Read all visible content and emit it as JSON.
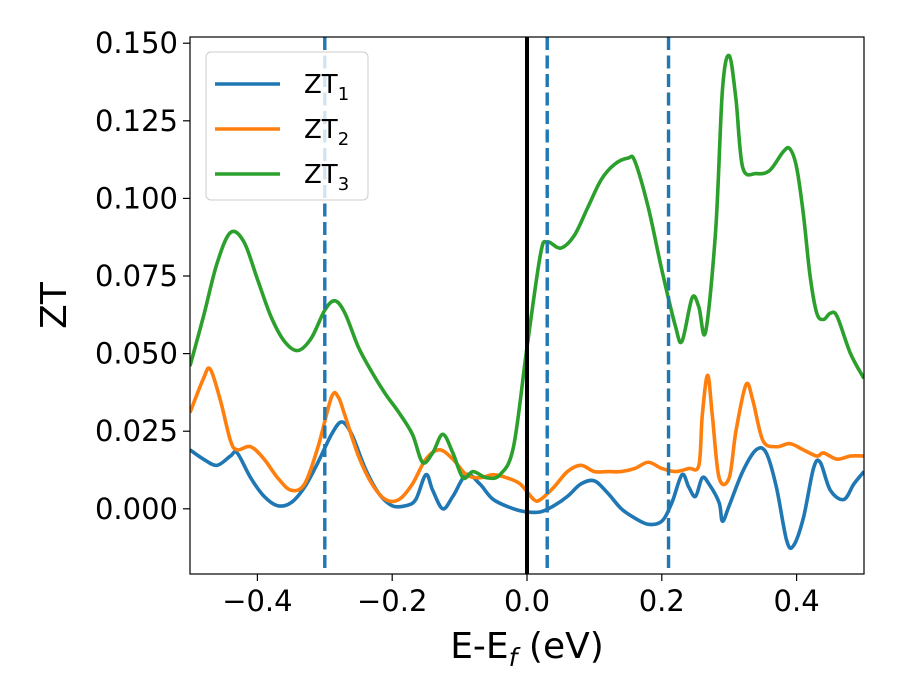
{
  "chart_data": {
    "type": "line",
    "xlabel": {
      "main": "E-E",
      "sub": "f",
      "suffix": " (eV)"
    },
    "ylabel": "ZT",
    "xlim": [
      -0.5,
      0.5
    ],
    "ylim": [
      -0.021,
      0.152
    ],
    "xticks": [
      {
        "value": -0.4,
        "label": "−0.4"
      },
      {
        "value": -0.2,
        "label": "−0.2"
      },
      {
        "value": 0.0,
        "label": "0.0"
      },
      {
        "value": 0.2,
        "label": "0.2"
      },
      {
        "value": 0.4,
        "label": "0.4"
      }
    ],
    "yticks": [
      {
        "value": 0.0,
        "label": "0.000"
      },
      {
        "value": 0.025,
        "label": "0.025"
      },
      {
        "value": 0.05,
        "label": "0.050"
      },
      {
        "value": 0.075,
        "label": "0.075"
      },
      {
        "value": 0.1,
        "label": "0.100"
      },
      {
        "value": 0.125,
        "label": "0.125"
      },
      {
        "value": 0.15,
        "label": "0.150"
      }
    ],
    "grid": false,
    "legend_position": "top-left",
    "vertical_lines": [
      {
        "x": 0.0,
        "style": "solid",
        "color": "#000000"
      },
      {
        "x": -0.3,
        "style": "dashed",
        "color": "#1f77b4"
      },
      {
        "x": 0.03,
        "style": "dashed",
        "color": "#1f77b4"
      },
      {
        "x": 0.21,
        "style": "dashed",
        "color": "#1f77b4"
      }
    ],
    "series": [
      {
        "name": {
          "main": "ZT",
          "sub": "1"
        },
        "color": "#1f77b4",
        "points": [
          [
            -0.5,
            0.019
          ],
          [
            -0.48,
            0.016
          ],
          [
            -0.46,
            0.014
          ],
          [
            -0.44,
            0.017
          ],
          [
            -0.43,
            0.018
          ],
          [
            -0.41,
            0.01
          ],
          [
            -0.39,
            0.004
          ],
          [
            -0.37,
            0.001
          ],
          [
            -0.35,
            0.002
          ],
          [
            -0.33,
            0.007
          ],
          [
            -0.31,
            0.015
          ],
          [
            -0.29,
            0.024
          ],
          [
            -0.275,
            0.028
          ],
          [
            -0.26,
            0.024
          ],
          [
            -0.24,
            0.013
          ],
          [
            -0.22,
            0.005
          ],
          [
            -0.2,
            0.001
          ],
          [
            -0.18,
            0.001
          ],
          [
            -0.165,
            0.003
          ],
          [
            -0.15,
            0.011
          ],
          [
            -0.14,
            0.006
          ],
          [
            -0.125,
            0.0
          ],
          [
            -0.11,
            0.004
          ],
          [
            -0.09,
            0.011
          ],
          [
            -0.07,
            0.008
          ],
          [
            -0.05,
            0.003
          ],
          [
            -0.02,
            0.0
          ],
          [
            0.0,
            -0.001
          ],
          [
            0.02,
            -0.001
          ],
          [
            0.04,
            0.001
          ],
          [
            0.06,
            0.004
          ],
          [
            0.08,
            0.008
          ],
          [
            0.1,
            0.009
          ],
          [
            0.12,
            0.005
          ],
          [
            0.14,
            0.0
          ],
          [
            0.16,
            -0.003
          ],
          [
            0.18,
            -0.005
          ],
          [
            0.2,
            -0.004
          ],
          [
            0.215,
            0.002
          ],
          [
            0.23,
            0.011
          ],
          [
            0.24,
            0.007
          ],
          [
            0.25,
            0.004
          ],
          [
            0.26,
            0.01
          ],
          [
            0.27,
            0.008
          ],
          [
            0.285,
            0.002
          ],
          [
            0.29,
            -0.004
          ],
          [
            0.3,
            0.001
          ],
          [
            0.32,
            0.012
          ],
          [
            0.34,
            0.019
          ],
          [
            0.355,
            0.018
          ],
          [
            0.37,
            0.007
          ],
          [
            0.385,
            -0.01
          ],
          [
            0.395,
            -0.012
          ],
          [
            0.41,
            -0.003
          ],
          [
            0.425,
            0.013
          ],
          [
            0.435,
            0.015
          ],
          [
            0.45,
            0.006
          ],
          [
            0.47,
            0.003
          ],
          [
            0.485,
            0.008
          ],
          [
            0.5,
            0.012
          ]
        ]
      },
      {
        "name": {
          "main": "ZT",
          "sub": "2"
        },
        "color": "#ff7f0e",
        "points": [
          [
            -0.5,
            0.031
          ],
          [
            -0.48,
            0.042
          ],
          [
            -0.47,
            0.045
          ],
          [
            -0.455,
            0.035
          ],
          [
            -0.44,
            0.022
          ],
          [
            -0.43,
            0.019
          ],
          [
            -0.41,
            0.02
          ],
          [
            -0.39,
            0.016
          ],
          [
            -0.37,
            0.01
          ],
          [
            -0.35,
            0.006
          ],
          [
            -0.33,
            0.008
          ],
          [
            -0.31,
            0.02
          ],
          [
            -0.29,
            0.036
          ],
          [
            -0.28,
            0.036
          ],
          [
            -0.27,
            0.03
          ],
          [
            -0.25,
            0.017
          ],
          [
            -0.23,
            0.008
          ],
          [
            -0.21,
            0.003
          ],
          [
            -0.19,
            0.003
          ],
          [
            -0.17,
            0.008
          ],
          [
            -0.15,
            0.016
          ],
          [
            -0.13,
            0.019
          ],
          [
            -0.11,
            0.016
          ],
          [
            -0.09,
            0.011
          ],
          [
            -0.07,
            0.01
          ],
          [
            -0.05,
            0.011
          ],
          [
            -0.03,
            0.01
          ],
          [
            -0.01,
            0.008
          ],
          [
            0.01,
            0.003
          ],
          [
            0.02,
            0.003
          ],
          [
            0.04,
            0.007
          ],
          [
            0.06,
            0.012
          ],
          [
            0.08,
            0.014
          ],
          [
            0.1,
            0.012
          ],
          [
            0.12,
            0.012
          ],
          [
            0.14,
            0.012
          ],
          [
            0.16,
            0.013
          ],
          [
            0.18,
            0.015
          ],
          [
            0.2,
            0.013
          ],
          [
            0.22,
            0.012
          ],
          [
            0.24,
            0.013
          ],
          [
            0.255,
            0.014
          ],
          [
            0.26,
            0.03
          ],
          [
            0.268,
            0.043
          ],
          [
            0.275,
            0.03
          ],
          [
            0.285,
            0.01
          ],
          [
            0.3,
            0.01
          ],
          [
            0.31,
            0.025
          ],
          [
            0.325,
            0.04
          ],
          [
            0.335,
            0.035
          ],
          [
            0.35,
            0.022
          ],
          [
            0.37,
            0.02
          ],
          [
            0.39,
            0.021
          ],
          [
            0.41,
            0.019
          ],
          [
            0.43,
            0.017
          ],
          [
            0.44,
            0.018
          ],
          [
            0.46,
            0.016
          ],
          [
            0.48,
            0.017
          ],
          [
            0.5,
            0.017
          ]
        ]
      },
      {
        "name": {
          "main": "ZT",
          "sub": "3"
        },
        "color": "#2ca02c",
        "points": [
          [
            -0.5,
            0.046
          ],
          [
            -0.48,
            0.062
          ],
          [
            -0.46,
            0.079
          ],
          [
            -0.44,
            0.089
          ],
          [
            -0.42,
            0.086
          ],
          [
            -0.4,
            0.074
          ],
          [
            -0.38,
            0.062
          ],
          [
            -0.36,
            0.054
          ],
          [
            -0.34,
            0.051
          ],
          [
            -0.32,
            0.055
          ],
          [
            -0.3,
            0.064
          ],
          [
            -0.285,
            0.067
          ],
          [
            -0.27,
            0.063
          ],
          [
            -0.25,
            0.052
          ],
          [
            -0.23,
            0.044
          ],
          [
            -0.21,
            0.037
          ],
          [
            -0.19,
            0.031
          ],
          [
            -0.17,
            0.024
          ],
          [
            -0.155,
            0.015
          ],
          [
            -0.14,
            0.018
          ],
          [
            -0.125,
            0.024
          ],
          [
            -0.11,
            0.018
          ],
          [
            -0.095,
            0.01
          ],
          [
            -0.08,
            0.012
          ],
          [
            -0.06,
            0.01
          ],
          [
            -0.04,
            0.011
          ],
          [
            -0.02,
            0.02
          ],
          [
            0.0,
            0.052
          ],
          [
            0.02,
            0.082
          ],
          [
            0.03,
            0.086
          ],
          [
            0.05,
            0.084
          ],
          [
            0.07,
            0.088
          ],
          [
            0.09,
            0.097
          ],
          [
            0.11,
            0.106
          ],
          [
            0.13,
            0.111
          ],
          [
            0.15,
            0.113
          ],
          [
            0.16,
            0.112
          ],
          [
            0.18,
            0.097
          ],
          [
            0.2,
            0.077
          ],
          [
            0.22,
            0.059
          ],
          [
            0.23,
            0.054
          ],
          [
            0.245,
            0.068
          ],
          [
            0.255,
            0.065
          ],
          [
            0.265,
            0.057
          ],
          [
            0.28,
            0.09
          ],
          [
            0.29,
            0.135
          ],
          [
            0.3,
            0.146
          ],
          [
            0.31,
            0.132
          ],
          [
            0.32,
            0.11
          ],
          [
            0.34,
            0.108
          ],
          [
            0.36,
            0.109
          ],
          [
            0.38,
            0.115
          ],
          [
            0.39,
            0.116
          ],
          [
            0.4,
            0.11
          ],
          [
            0.41,
            0.095
          ],
          [
            0.42,
            0.075
          ],
          [
            0.43,
            0.063
          ],
          [
            0.44,
            0.061
          ],
          [
            0.45,
            0.063
          ],
          [
            0.46,
            0.062
          ],
          [
            0.48,
            0.05
          ],
          [
            0.5,
            0.042
          ]
        ]
      }
    ]
  }
}
